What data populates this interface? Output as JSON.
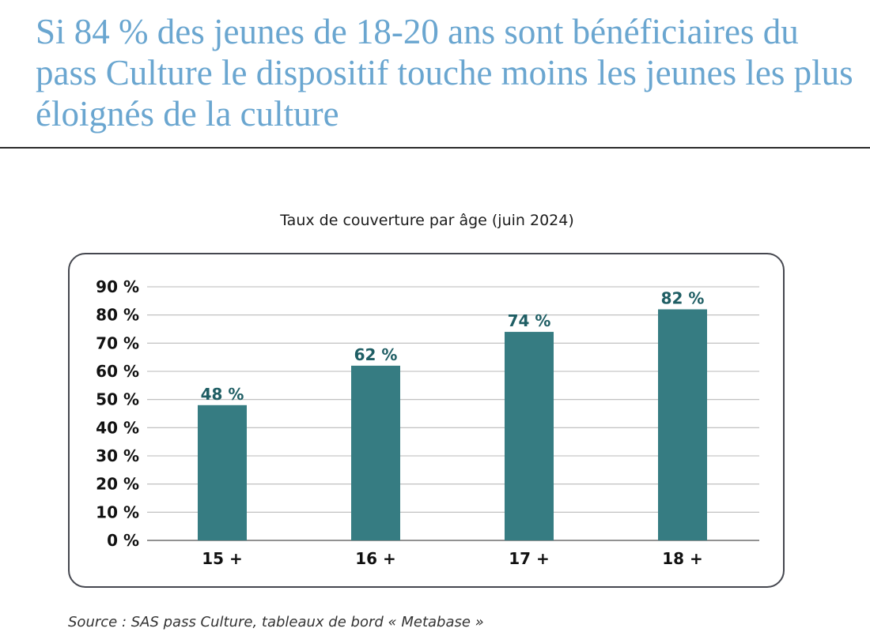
{
  "headline": "Si 84 % des jeunes de 18-20 ans sont bénéficiaires du pass Culture le dispositif touche moins les jeunes les plus éloignés de la culture",
  "source": "Source : SAS pass Culture, tableaux de bord « Metabase »",
  "colors": {
    "headline": "#6aa6d0",
    "bar": "#367c82",
    "data_label": "#1f5e64",
    "grid": "#b9b9b9",
    "frame": "#45474f"
  },
  "chart_data": {
    "type": "bar",
    "title": "Taux de couverture par âge (juin 2024)",
    "categories": [
      "15 +",
      "16 +",
      "17 +",
      "18 +"
    ],
    "values": [
      48,
      62,
      74,
      82
    ],
    "data_labels": [
      "48 %",
      "62 %",
      "74 %",
      "82 %"
    ],
    "ylim": [
      0,
      90
    ],
    "y_ticks": [
      0,
      10,
      20,
      30,
      40,
      50,
      60,
      70,
      80,
      90
    ],
    "y_tick_labels": [
      "0 %",
      "10 %",
      "20 %",
      "30 %",
      "40 %",
      "50 %",
      "60 %",
      "70 %",
      "80 %",
      "90 %"
    ],
    "xlabel": "",
    "ylabel": "",
    "grid": true,
    "legend": "none"
  }
}
